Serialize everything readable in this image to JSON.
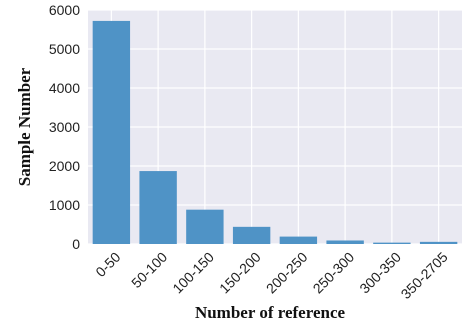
{
  "chart_data": {
    "type": "bar",
    "categories": [
      "0-50",
      "50-100",
      "100-150",
      "150-200",
      "200-250",
      "250-300",
      "300-350",
      "350-2705"
    ],
    "values": [
      5720,
      1870,
      880,
      440,
      190,
      90,
      35,
      55
    ],
    "xlabel": "Number of reference",
    "ylabel": "Sample Number",
    "ylim": [
      0,
      6000
    ],
    "yticks": [
      0,
      1000,
      2000,
      3000,
      4000,
      5000,
      6000
    ],
    "grid": true,
    "bar_color": "#4f93c6",
    "background_color": "#e9e9f2",
    "grid_color": "#ffffff"
  }
}
